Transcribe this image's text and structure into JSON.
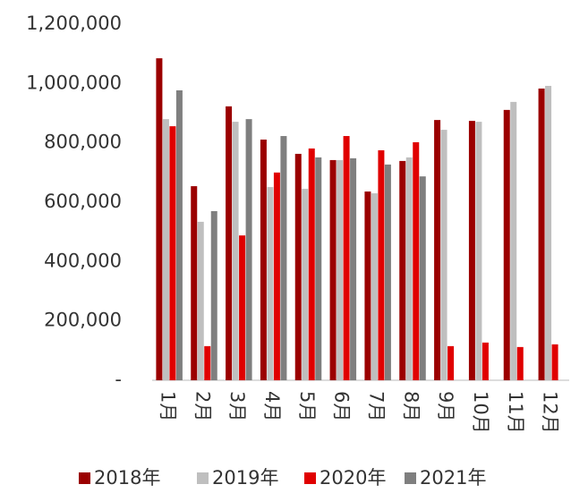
{
  "chart_data": {
    "type": "bar",
    "categories": [
      "1月",
      "2月",
      "3月",
      "4月",
      "5月",
      "6月",
      "7月",
      "8月",
      "9月",
      "10月",
      "11月",
      "12月"
    ],
    "series": [
      {
        "name": "2018年",
        "color": "#9b0000",
        "values": [
          1085000,
          654000,
          923000,
          811000,
          763000,
          742000,
          636000,
          739000,
          877000,
          874000,
          911000,
          983000
        ]
      },
      {
        "name": "2019年",
        "color": "#bfbfbf",
        "values": [
          880000,
          534000,
          871000,
          651000,
          645000,
          742000,
          630000,
          751000,
          844000,
          871000,
          938000,
          992000
        ]
      },
      {
        "name": "2020年",
        "color": "#e00000",
        "values": [
          856000,
          115000,
          488000,
          700000,
          781000,
          823000,
          775000,
          802000,
          115000,
          127000,
          112000,
          121000
        ]
      },
      {
        "name": "2021年",
        "color": "#7f7f7f",
        "values": [
          977000,
          570000,
          880000,
          823000,
          751000,
          748000,
          727000,
          687000,
          null,
          null,
          null,
          null
        ]
      }
    ],
    "ylim": [
      0,
      1200000
    ],
    "yticks": [
      {
        "value": 0,
        "label": "-"
      },
      {
        "value": 200000,
        "label": "200,000"
      },
      {
        "value": 400000,
        "label": "400,000"
      },
      {
        "value": 600000,
        "label": "600,000"
      },
      {
        "value": 800000,
        "label": "800,000"
      },
      {
        "value": 1000000,
        "label": "1,000,000"
      },
      {
        "value": 1200000,
        "label": "1,200,000"
      }
    ],
    "grid": false
  }
}
